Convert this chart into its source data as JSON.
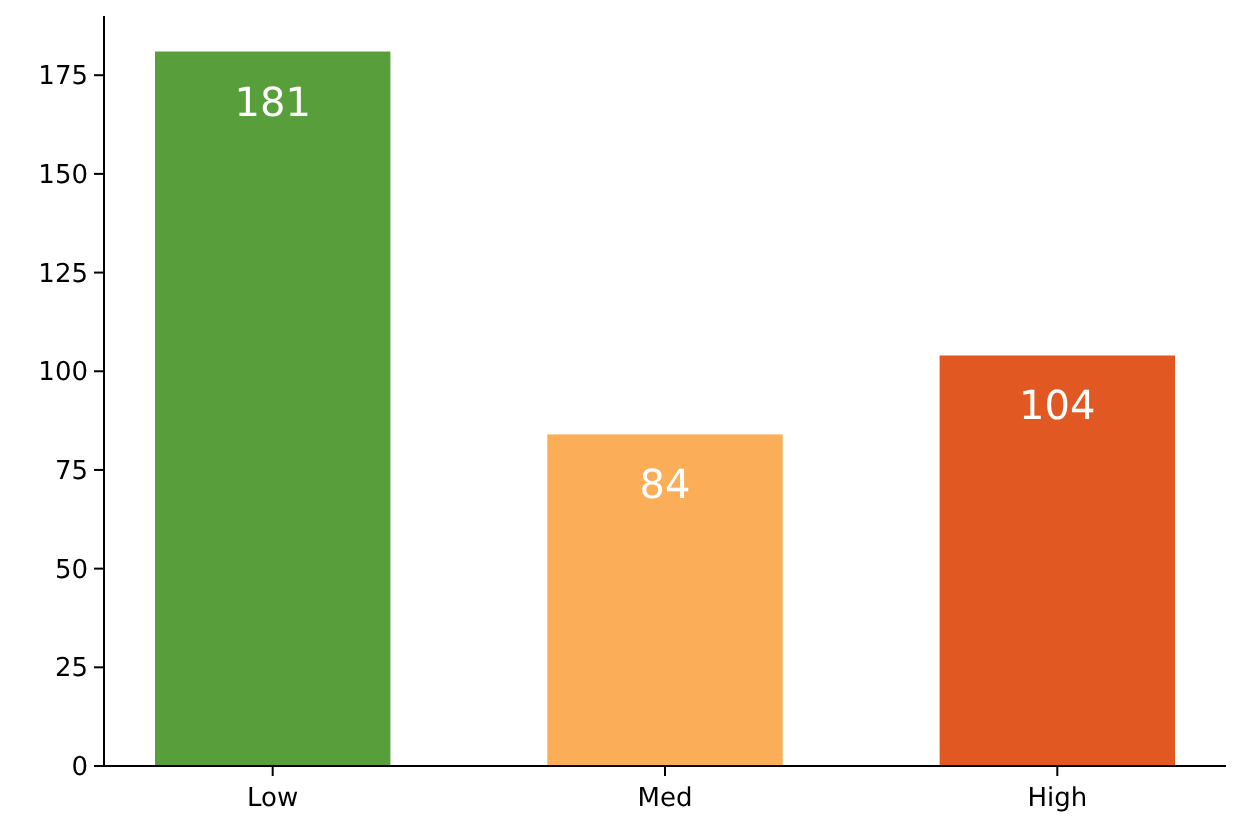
{
  "chart_data": {
    "type": "bar",
    "categories": [
      "Low",
      "Med",
      "High"
    ],
    "values": [
      181,
      84,
      104
    ],
    "colors": [
      "#589e3a",
      "#fbae57",
      "#e25822"
    ],
    "ylim": [
      0,
      190
    ],
    "yticks": [
      0,
      25,
      50,
      75,
      100,
      125,
      150,
      175
    ],
    "data_labels": true,
    "grid": false
  }
}
